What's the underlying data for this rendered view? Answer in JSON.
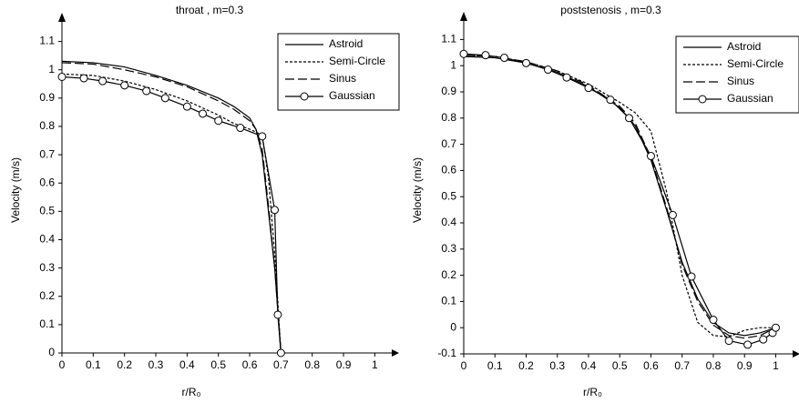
{
  "chart_data": [
    {
      "type": "line",
      "title": "throat , m=0.3",
      "x_label": "r/R₀",
      "y_label": "Velocity (m/s)",
      "xlim": [
        0,
        1.06
      ],
      "ylim": [
        0,
        1.15
      ],
      "xticks": [
        0,
        0.1,
        0.2,
        0.3,
        0.4,
        0.5,
        0.6,
        0.7,
        0.8,
        0.9,
        1
      ],
      "yticks": [
        0,
        0.1,
        0.2,
        0.3,
        0.4,
        0.5,
        0.6,
        0.7,
        0.8,
        0.9,
        1,
        1.1
      ],
      "legend": "top-right",
      "series": [
        {
          "name": "Astroid",
          "color": "#000000",
          "style": "solid",
          "x": [
            0,
            0.1,
            0.2,
            0.3,
            0.4,
            0.5,
            0.55,
            0.6,
            0.62,
            0.64,
            0.66,
            0.68,
            0.69,
            0.7
          ],
          "values": [
            1.03,
            1.025,
            1.01,
            0.98,
            0.945,
            0.9,
            0.87,
            0.83,
            0.79,
            0.7,
            0.5,
            0.3,
            0.15,
            0
          ]
        },
        {
          "name": "Semi-Circle",
          "color": "#000000",
          "style": "dotted",
          "x": [
            0,
            0.1,
            0.2,
            0.3,
            0.4,
            0.5,
            0.55,
            0.6,
            0.62,
            0.64,
            0.66,
            0.68,
            0.69,
            0.7
          ],
          "values": [
            0.985,
            0.98,
            0.96,
            0.93,
            0.89,
            0.84,
            0.81,
            0.79,
            0.78,
            0.77,
            0.62,
            0.35,
            0.18,
            0
          ]
        },
        {
          "name": "Sinus",
          "color": "#000000",
          "style": "dashed",
          "x": [
            0,
            0.1,
            0.2,
            0.3,
            0.4,
            0.5,
            0.55,
            0.6,
            0.62,
            0.64,
            0.66,
            0.68,
            0.69,
            0.7
          ],
          "values": [
            1.025,
            1.02,
            1.0,
            0.975,
            0.94,
            0.89,
            0.86,
            0.82,
            0.79,
            0.72,
            0.52,
            0.3,
            0.15,
            0
          ]
        },
        {
          "name": "Gaussian",
          "color": "#000000",
          "style": "solid",
          "marker": "circle",
          "x": [
            0,
            0.07,
            0.13,
            0.2,
            0.27,
            0.33,
            0.4,
            0.45,
            0.5,
            0.57,
            0.64,
            0.68,
            0.69,
            0.7
          ],
          "values": [
            0.975,
            0.97,
            0.96,
            0.945,
            0.925,
            0.9,
            0.87,
            0.845,
            0.82,
            0.795,
            0.765,
            0.505,
            0.135,
            0
          ]
        }
      ]
    },
    {
      "type": "line",
      "title": "poststenosis , m=0.3",
      "x_label": "r/R₀",
      "y_label": "Velocity (m/s)",
      "xlim": [
        0,
        1.06
      ],
      "ylim": [
        -0.1,
        1.15
      ],
      "xticks": [
        0,
        0.1,
        0.2,
        0.3,
        0.4,
        0.5,
        0.6,
        0.7,
        0.8,
        0.9,
        1
      ],
      "yticks": [
        -0.1,
        0,
        0.1,
        0.2,
        0.3,
        0.4,
        0.5,
        0.6,
        0.7,
        0.8,
        0.9,
        1,
        1.1
      ],
      "legend": "top-right",
      "series": [
        {
          "name": "Astroid",
          "color": "#000000",
          "style": "solid",
          "x": [
            0,
            0.1,
            0.2,
            0.3,
            0.4,
            0.5,
            0.55,
            0.6,
            0.65,
            0.7,
            0.75,
            0.8,
            0.85,
            0.9,
            0.95,
            1
          ],
          "values": [
            1.035,
            1.03,
            1.01,
            0.975,
            0.92,
            0.84,
            0.77,
            0.64,
            0.45,
            0.25,
            0.11,
            0.02,
            -0.02,
            -0.03,
            -0.02,
            0
          ]
        },
        {
          "name": "Semi-Circle",
          "color": "#000000",
          "style": "dotted",
          "x": [
            0,
            0.1,
            0.2,
            0.3,
            0.4,
            0.5,
            0.55,
            0.6,
            0.65,
            0.7,
            0.75,
            0.8,
            0.85,
            0.9,
            0.95,
            1
          ],
          "values": [
            1.04,
            1.035,
            1.015,
            0.98,
            0.93,
            0.86,
            0.82,
            0.75,
            0.52,
            0.2,
            0.02,
            -0.03,
            -0.035,
            -0.01,
            0,
            0
          ]
        },
        {
          "name": "Sinus",
          "color": "#000000",
          "style": "dashed",
          "x": [
            0,
            0.1,
            0.2,
            0.3,
            0.4,
            0.5,
            0.55,
            0.6,
            0.65,
            0.7,
            0.75,
            0.8,
            0.85,
            0.9,
            0.95,
            1
          ],
          "values": [
            1.04,
            1.035,
            1.015,
            0.98,
            0.925,
            0.845,
            0.78,
            0.65,
            0.46,
            0.24,
            0.1,
            0.01,
            -0.03,
            -0.04,
            -0.03,
            0
          ]
        },
        {
          "name": "Gaussian",
          "color": "#000000",
          "style": "solid",
          "marker": "circle",
          "x": [
            0,
            0.07,
            0.13,
            0.2,
            0.27,
            0.33,
            0.4,
            0.47,
            0.53,
            0.6,
            0.67,
            0.73,
            0.8,
            0.85,
            0.91,
            0.96,
            0.99,
            1
          ],
          "values": [
            1.045,
            1.04,
            1.03,
            1.01,
            0.985,
            0.955,
            0.915,
            0.87,
            0.8,
            0.655,
            0.43,
            0.195,
            0.03,
            -0.05,
            -0.065,
            -0.045,
            -0.02,
            0
          ]
        }
      ]
    }
  ]
}
